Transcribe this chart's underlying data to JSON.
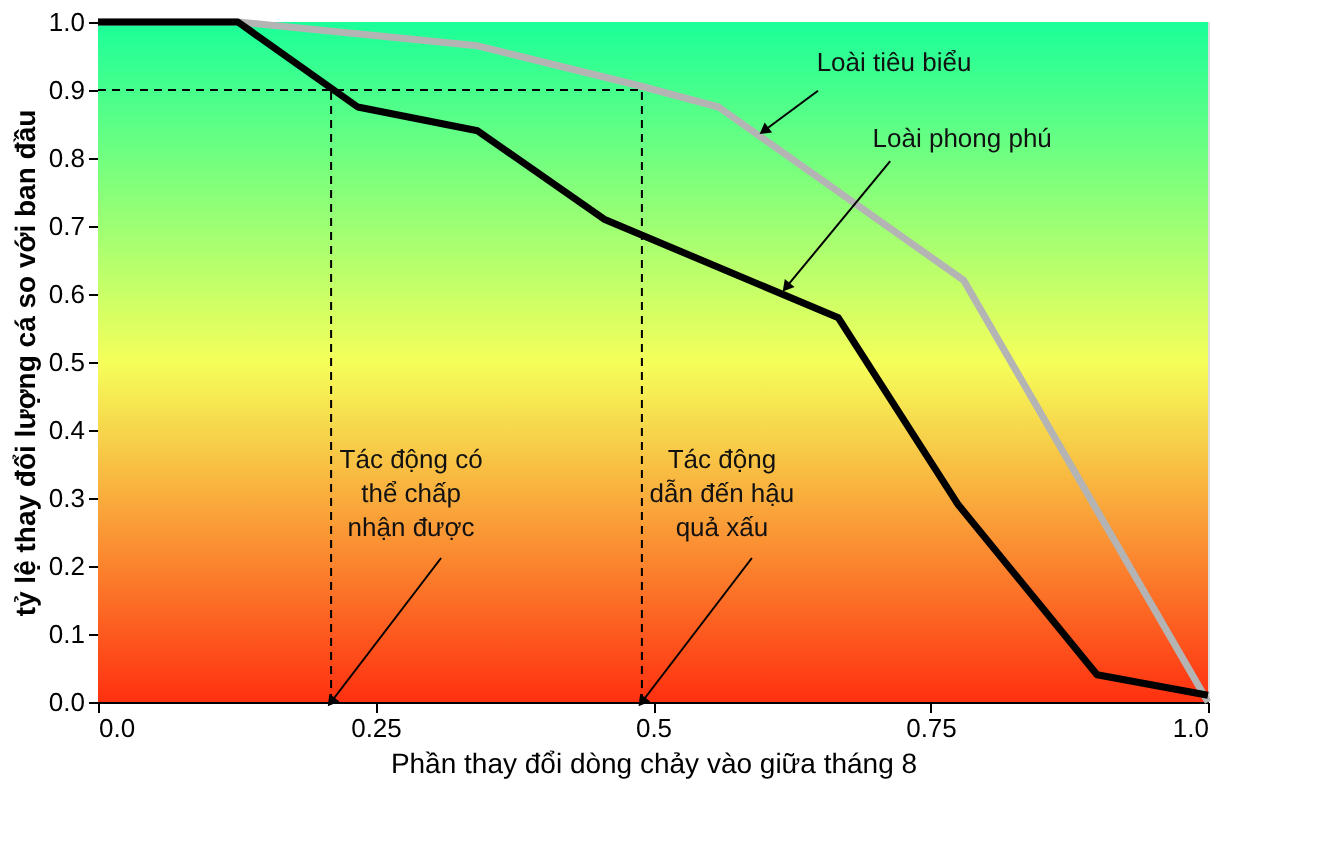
{
  "chart_data": {
    "type": "line",
    "xlabel": "Phần thay đổi dòng chảy vào giữa tháng 8",
    "ylabel": "tỷ lệ thay đổi lượng cá so với ban đầu",
    "series": [
      {
        "color": "#b4b4b4",
        "x": [
          0,
          0.126,
          0.342,
          0.486,
          0.559,
          0.78,
          1.0
        ],
        "values": [
          1.0,
          1.0,
          0.965,
          0.907,
          0.875,
          0.62,
          0.0
        ]
      },
      {
        "color": "#000000",
        "x": [
          0,
          0.126,
          0.234,
          0.342,
          0.456,
          0.667,
          0.775,
          0.9,
          1.0
        ],
        "values": [
          1.0,
          1.0,
          0.875,
          0.84,
          0.71,
          0.565,
          0.29,
          0.04,
          0.01
        ]
      }
    ],
    "xlim": [
      0,
      1.0
    ],
    "ylim": [
      0,
      1.0
    ],
    "xticks": [
      {
        "value": 0,
        "label": "0.0"
      },
      0.25,
      0.5,
      0.75,
      {
        "value": 1,
        "label": "1.0"
      }
    ],
    "yticks": [
      {
        "value": 0,
        "label": "0.0"
      },
      0.1,
      0.2,
      0.3,
      0.4,
      0.5,
      0.6,
      0.7,
      0.8,
      0.9,
      {
        "value": 1,
        "label": "1.0"
      }
    ],
    "ref_lines": [
      {
        "axis": "y",
        "value": 0.9,
        "line_style": "dashed",
        "color": "#000000"
      },
      {
        "axis": "x",
        "value": 0.21,
        "line_style": "dashed",
        "color": "#000000"
      },
      {
        "axis": "x",
        "value": 0.49,
        "line_style": "dashed",
        "color": "#000000"
      }
    ],
    "annotations": [
      {
        "text": "Loài tiêu biểu",
        "x": 0.6,
        "y": 0.84
      },
      {
        "text": "Loài  phong phú",
        "x": 0.62,
        "y": 0.61
      },
      {
        "text": "Tác động có\nthể chấp\nnhận được",
        "x": 0.21,
        "y": 0.0
      },
      {
        "text": "Tác động\ndẫn đến hậu\nquả xấu",
        "x": 0.49,
        "y": 0.0
      }
    ],
    "marker": "none",
    "line_style": "solid"
  }
}
